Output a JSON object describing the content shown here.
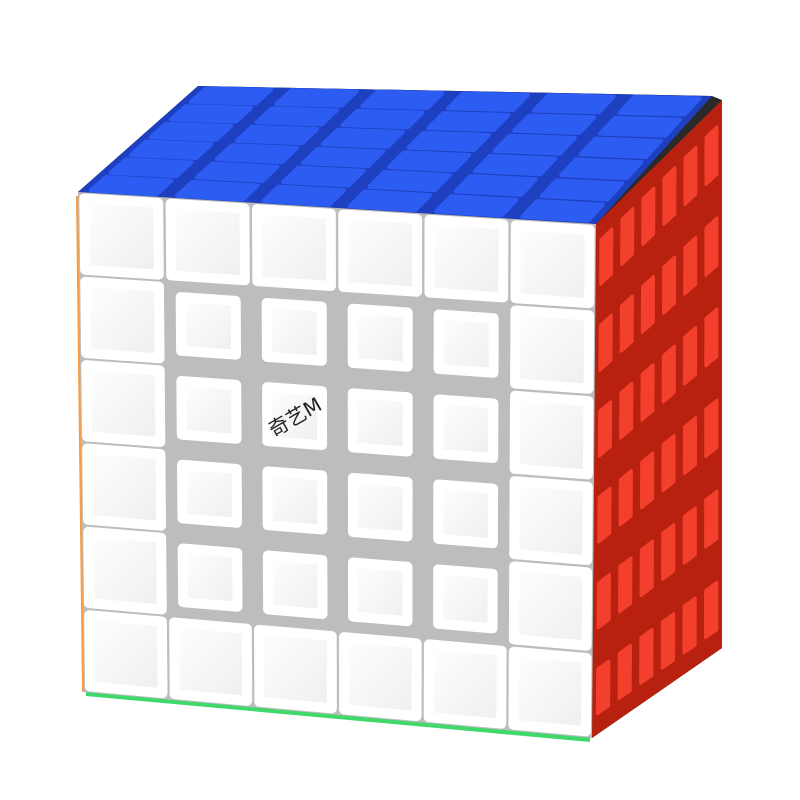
{
  "product": {
    "grid_size": 6,
    "logo_text": "奇艺M",
    "colors": {
      "top": "#2c5cf2",
      "top_edge": "#1d3fc0",
      "right": "#f2402c",
      "right_edge": "#b8200f",
      "front": "#fbfbfb",
      "front_gap": "#bdbdbd",
      "left_edge": "#ff9a3c",
      "bottom_edge": "#3fd96a",
      "body": "#2a2a2a"
    }
  }
}
